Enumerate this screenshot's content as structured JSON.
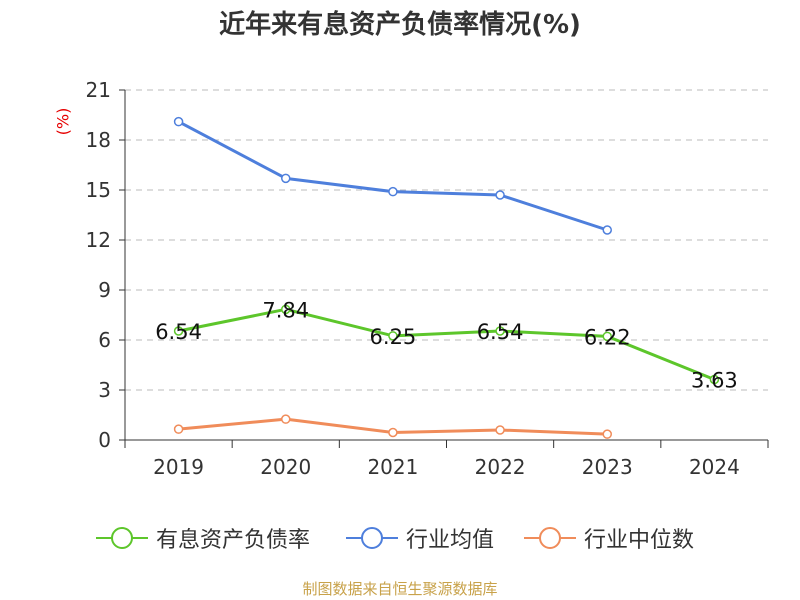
{
  "title": "近年来有息资产负债率情况(%)",
  "unit": "(%)",
  "source": "制图数据来自恒生聚源数据库",
  "colors": {
    "series_0": "#5dc62b",
    "series_1": "#4e7fdc",
    "series_2": "#f08c5a",
    "grid": "#bbbbbb",
    "axis": "#333333"
  },
  "chart_data": {
    "type": "line",
    "title": "近年来有息资产负债率情况(%)",
    "ylabel": "(%)",
    "xlabel": "",
    "categories": [
      "2019",
      "2020",
      "2021",
      "2022",
      "2023",
      "2024"
    ],
    "ylim": [
      0,
      21
    ],
    "yticks": [
      0,
      3,
      6,
      9,
      12,
      15,
      18,
      21
    ],
    "grid": true,
    "legend": "bottom",
    "series": [
      {
        "name": "有息资产负债率",
        "values": [
          6.54,
          7.84,
          6.25,
          6.54,
          6.22,
          3.63
        ],
        "labels": [
          "6.54",
          "7.84",
          "6.25",
          "6.54",
          "6.22",
          "3.63"
        ]
      },
      {
        "name": "行业均值",
        "values": [
          19.1,
          15.7,
          14.9,
          14.7,
          12.6,
          null
        ]
      },
      {
        "name": "行业中位数",
        "values": [
          0.65,
          1.25,
          0.45,
          0.6,
          0.35,
          null
        ]
      }
    ]
  }
}
